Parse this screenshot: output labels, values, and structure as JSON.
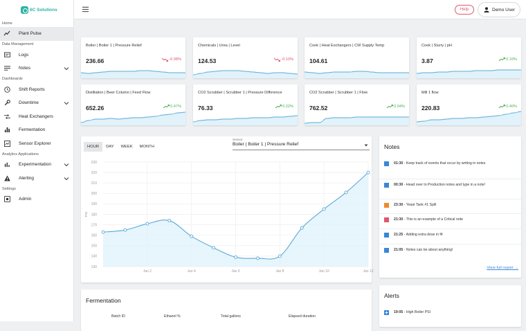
{
  "brand": {
    "name": "6C Solutions",
    "color": "#2bb3a3"
  },
  "sidebar": {
    "sections": [
      {
        "title": "Home",
        "items": [
          {
            "label": "Plant Pulse",
            "icon": "trend-icon",
            "active": true
          }
        ]
      },
      {
        "title": "Data Management",
        "items": [
          {
            "label": "Logs",
            "icon": "logs-icon"
          },
          {
            "label": "Notes",
            "icon": "notes-icon",
            "expandable": true
          }
        ]
      },
      {
        "title": "Dashboards",
        "items": [
          {
            "label": "Shift Reports",
            "icon": "clock-icon"
          },
          {
            "label": "Downtime",
            "icon": "wrench-icon",
            "expandable": true
          },
          {
            "label": "Heat Exchangers",
            "icon": "exchanger-icon"
          },
          {
            "label": "Fermentation",
            "icon": "bar-chart-icon"
          },
          {
            "label": "Sensor Explorer",
            "icon": "sensor-icon"
          }
        ]
      },
      {
        "title": "Analytics Applications",
        "items": [
          {
            "label": "Experimentation",
            "icon": "bars-icon",
            "expandable": true
          },
          {
            "label": "Alerting",
            "icon": "warning-icon",
            "expandable": true
          }
        ]
      },
      {
        "title": "Settings",
        "items": [
          {
            "label": "Admin",
            "icon": "admin-icon"
          }
        ]
      }
    ]
  },
  "topbar": {
    "help_label": "Help",
    "user_label": "Demo User"
  },
  "metrics": [
    {
      "title": "Boiler | Boiler 1 | Pressure Relief",
      "value": "236.66",
      "change": "-0.08%",
      "dir": "down"
    },
    {
      "title": "Chemicals | Urea | Level",
      "value": "124.53",
      "change": "-0.10%",
      "dir": "down"
    },
    {
      "title": "Cook | Heat Exchangers | CW Supply Temp",
      "value": "104.61",
      "change": "",
      "dir": ""
    },
    {
      "title": "Cook | Slurry | pH",
      "value": "3.87",
      "change": "0.10%",
      "dir": "up"
    },
    {
      "title": "Distillation | Beer Column | Feed Flow",
      "value": "652.26",
      "change": "0.47%",
      "dir": "up"
    },
    {
      "title": "CO2 Scrubber | Scrubber 1 | Pressure Difference",
      "value": "76.33",
      "change": "0.22%",
      "dir": "up"
    },
    {
      "title": "CO2 Scrubber | Scrubber 1 | Flow",
      "value": "762.52",
      "change": "0.04%",
      "dir": "up"
    },
    {
      "title": "Mill 1 flow",
      "value": "220.83",
      "change": "0.40%",
      "dir": "up"
    }
  ],
  "colors": {
    "up": "#4caf50",
    "down": "#e0566b",
    "line": "#5aa9d6",
    "fill": "#e1f2fb"
  },
  "chart": {
    "ranges": [
      "HOUR",
      "DAY",
      "WEEK",
      "MONTH"
    ],
    "selected_range": "HOUR",
    "sensor_label": "Sensor",
    "sensor_value": "Boiler | Boiler 1 | Pressure Relief"
  },
  "chart_data": {
    "type": "line",
    "ylabel": "PSI",
    "ylim": [
      130,
      230
    ],
    "y_ticks": [
      130,
      140,
      150,
      160,
      170,
      180,
      190,
      200,
      210,
      220,
      230
    ],
    "x_ticks": [
      "Jan 2",
      "Jan 4",
      "Jan 6",
      "Jan 8",
      "Jan 10",
      "Jan 12"
    ],
    "x_tick_days": [
      2,
      4,
      6,
      8,
      10,
      12
    ],
    "xlim_days": [
      0,
      12
    ],
    "points": [
      {
        "day": 0,
        "value": 163
      },
      {
        "day": 1,
        "value": 165
      },
      {
        "day": 2,
        "value": 171
      },
      {
        "day": 3,
        "value": 174
      },
      {
        "day": 4,
        "value": 159
      },
      {
        "day": 5,
        "value": 148
      },
      {
        "day": 6,
        "value": 139
      },
      {
        "day": 7,
        "value": 138
      },
      {
        "day": 8,
        "value": 140
      },
      {
        "day": 9,
        "value": 167
      },
      {
        "day": 10,
        "value": 185
      },
      {
        "day": 11,
        "value": 201
      },
      {
        "day": 12,
        "value": 220
      }
    ],
    "grid": true,
    "legend": "none"
  },
  "notes": {
    "title": "Notes",
    "items": [
      {
        "time": "01:30",
        "text": " - Keep track of events that occur by writing in notes",
        "color": "#3a86d6"
      },
      {
        "time": "00:30",
        "text": " - Head over to Production notes and type in a note!",
        "color": "#3a86d6"
      },
      {
        "time": "23:30",
        "text": " - Yeast Tank #1 Spill",
        "color": "#ef8a2a"
      },
      {
        "time": "21:30",
        "text": " - This is an example of a Critical note",
        "color": "#e0566b"
      },
      {
        "time": "21:25",
        "text": " - Adding extra dose in f4",
        "color": "#3a86d6"
      },
      {
        "time": "21:05",
        "text": " - Notes can be about anything!",
        "color": "#3a86d6"
      }
    ],
    "link": "View full report →"
  },
  "fermentation": {
    "title": "Fermentation",
    "columns": [
      "Batch ID",
      "Ethanol %",
      "Total gallons",
      "Elapsed duration"
    ]
  },
  "alerts": {
    "title": "Alerts",
    "items": [
      {
        "time": "19:05",
        "text": " - High Boiler PSI"
      }
    ]
  }
}
